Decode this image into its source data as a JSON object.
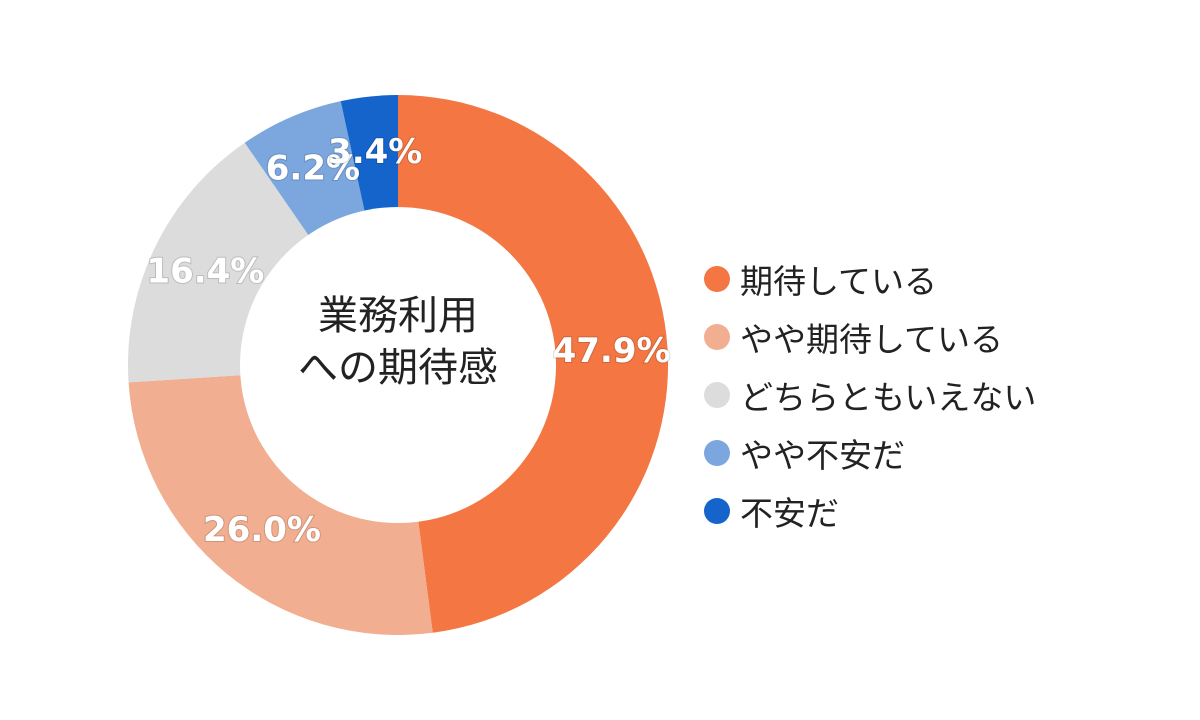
{
  "chart_data": {
    "type": "pie",
    "title": "",
    "center_label": [
      "業務利用",
      "への期待感"
    ],
    "categories": [
      "期待している",
      "やや期待している",
      "どちらともいえない",
      "やや不安だ",
      "不安だ"
    ],
    "values": [
      47.9,
      26.0,
      16.4,
      6.2,
      3.4
    ],
    "value_labels": [
      "47.9%",
      "26.0%",
      "16.4%",
      "6.2%",
      "3.4%"
    ],
    "colors": [
      "#F47642",
      "#F1AE90",
      "#DCDCDC",
      "#7BA7DE",
      "#1464CC"
    ],
    "legend_position": "right",
    "style": "donut"
  }
}
